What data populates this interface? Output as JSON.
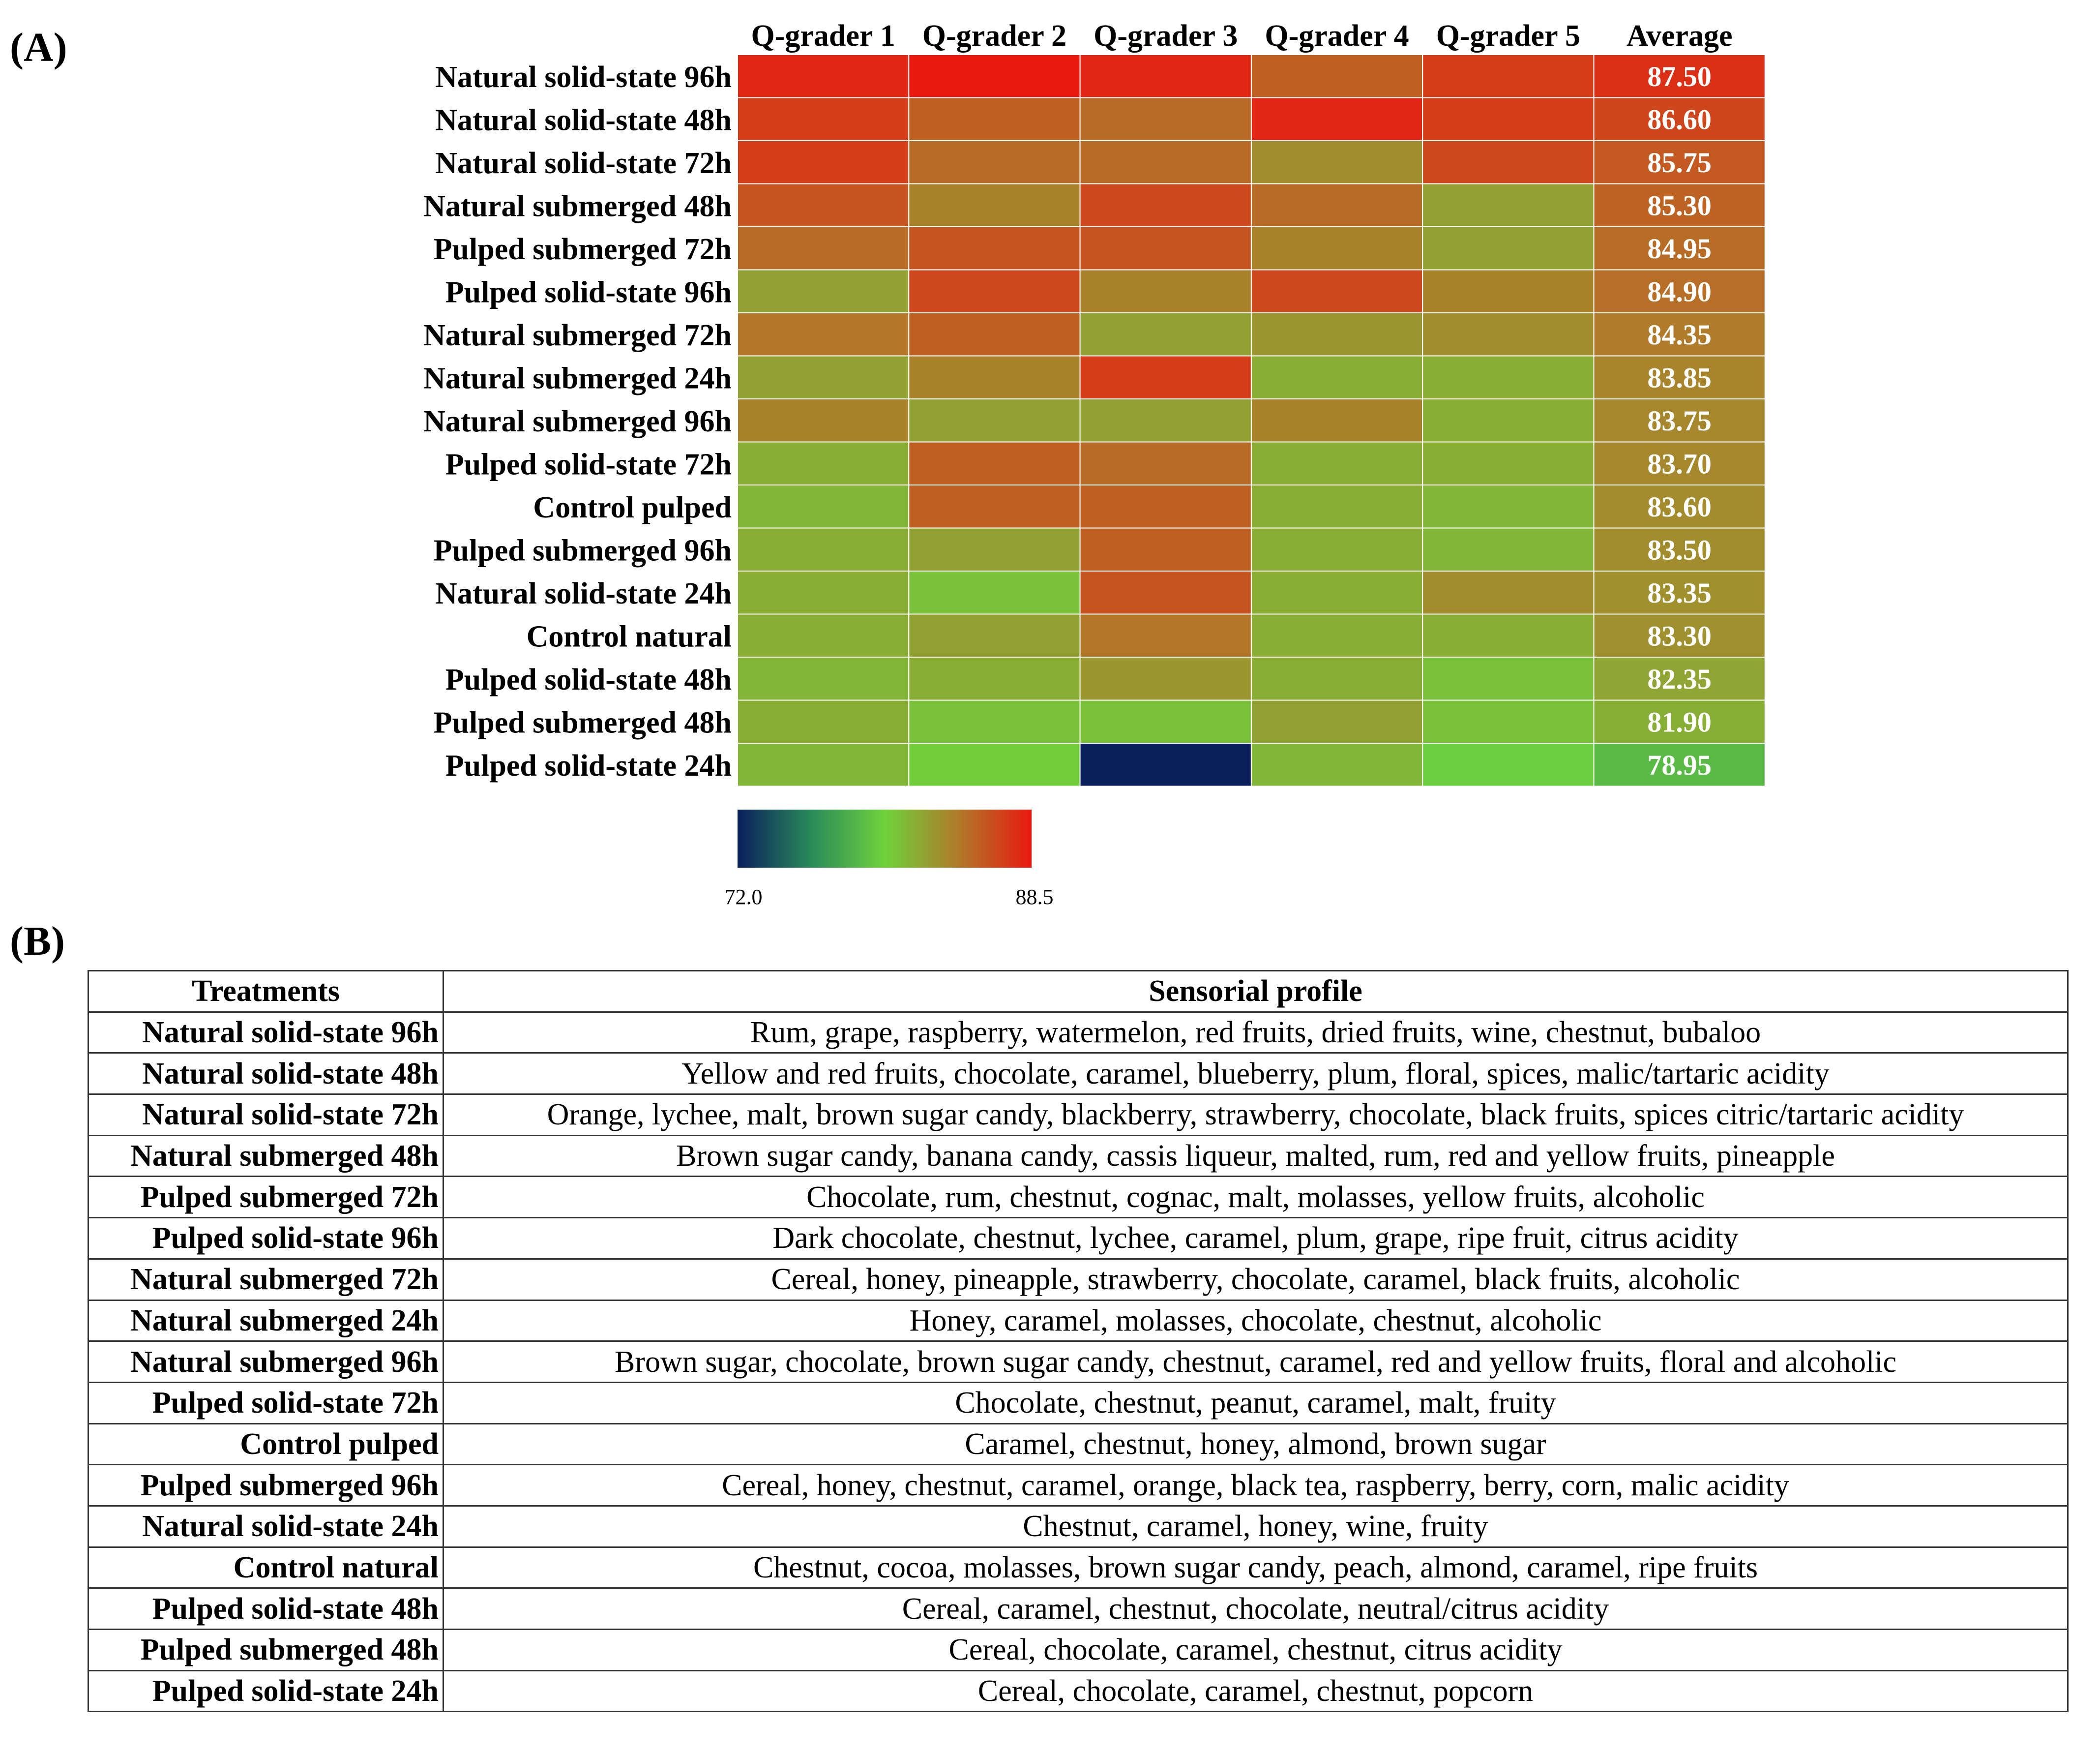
{
  "panel_a_label": "(A)",
  "panel_b_label": "(B)",
  "chart_data": {
    "type": "heatmap",
    "columns": [
      "Q-grader 1",
      "Q-grader 2",
      "Q-grader 3",
      "Q-grader 4",
      "Q-grader 5",
      "Average"
    ],
    "rows": [
      "Natural solid-state 96h",
      "Natural solid-state 48h",
      "Natural solid-state 72h",
      "Natural submerged 48h",
      "Pulped submerged 72h",
      "Pulped solid-state 96h",
      "Natural submerged 72h",
      "Natural submerged 24h",
      "Natural submerged 96h",
      "Pulped solid-state 72h",
      "Control pulped",
      "Pulped submerged 96h",
      "Natural solid-state 24h",
      "Control natural",
      "Pulped solid-state 48h",
      "Pulped submerged 48h",
      "Pulped solid-state 24h"
    ],
    "values": [
      [
        88.0,
        88.5,
        88.0,
        85.5,
        87.0,
        87.5
      ],
      [
        87.0,
        85.5,
        85.0,
        88.0,
        87.0,
        86.6
      ],
      [
        87.0,
        85.0,
        85.0,
        83.5,
        86.5,
        85.75
      ],
      [
        86.0,
        84.0,
        86.5,
        85.0,
        82.5,
        85.3
      ],
      [
        85.0,
        86.0,
        86.0,
        84.0,
        82.5,
        84.95
      ],
      [
        82.5,
        86.5,
        84.0,
        86.5,
        84.0,
        84.9
      ],
      [
        84.5,
        85.5,
        82.5,
        83.0,
        83.5,
        84.35
      ],
      [
        82.5,
        84.0,
        87.0,
        82.0,
        82.0,
        83.85
      ],
      [
        84.0,
        82.5,
        82.5,
        84.0,
        82.0,
        83.75
      ],
      [
        82.0,
        85.5,
        85.0,
        82.0,
        82.0,
        83.7
      ],
      [
        81.5,
        85.5,
        85.5,
        82.0,
        81.5,
        83.6
      ],
      [
        82.0,
        82.5,
        85.5,
        82.0,
        81.5,
        83.5
      ],
      [
        82.0,
        81.0,
        86.0,
        82.0,
        83.5,
        83.35
      ],
      [
        82.0,
        82.5,
        84.5,
        82.0,
        82.0,
        83.3
      ],
      [
        81.5,
        82.0,
        83.0,
        82.0,
        81.0,
        82.35
      ],
      [
        82.0,
        81.0,
        81.0,
        82.5,
        81.0,
        81.9
      ],
      [
        81.5,
        80.5,
        72.0,
        81.5,
        80.0,
        78.95
      ]
    ],
    "average_labels": [
      "87.50",
      "86.60",
      "85.75",
      "85.30",
      "84.95",
      "84.90",
      "84.35",
      "83.85",
      "83.75",
      "83.70",
      "83.60",
      "83.50",
      "83.35",
      "83.30",
      "82.35",
      "81.90",
      "78.95"
    ],
    "color_scale": {
      "min": 72.0,
      "max": 88.5,
      "min_label": "72.0",
      "max_label": "88.5",
      "stops": [
        "#0a1f5c",
        "#2a8a5a",
        "#6ed23c",
        "#b07a2a",
        "#e81a10"
      ]
    }
  },
  "table": {
    "headers": [
      "Treatments",
      "Sensorial profile"
    ],
    "rows": [
      [
        "Natural solid-state 96h",
        "Rum, grape, raspberry, watermelon, red fruits, dried fruits, wine, chestnut, bubaloo"
      ],
      [
        "Natural solid-state 48h",
        "Yellow and red fruits, chocolate, caramel, blueberry, plum, floral, spices, malic/tartaric acidity"
      ],
      [
        "Natural solid-state 72h",
        "Orange, lychee, malt, brown sugar candy, blackberry, strawberry, chocolate, black fruits, spices citric/tartaric acidity"
      ],
      [
        "Natural submerged 48h",
        "Brown sugar candy, banana candy, cassis liqueur, malted, rum, red and yellow fruits, pineapple"
      ],
      [
        "Pulped submerged 72h",
        "Chocolate, rum, chestnut, cognac, malt, molasses, yellow fruits, alcoholic"
      ],
      [
        "Pulped solid-state 96h",
        "Dark chocolate, chestnut, lychee, caramel, plum, grape, ripe fruit, citrus acidity"
      ],
      [
        "Natural submerged 72h",
        "Cereal, honey, pineapple, strawberry, chocolate, caramel, black fruits, alcoholic"
      ],
      [
        "Natural submerged 24h",
        "Honey, caramel, molasses, chocolate, chestnut, alcoholic"
      ],
      [
        "Natural submerged 96h",
        "Brown sugar, chocolate, brown sugar candy, chestnut, caramel, red and yellow fruits, floral and alcoholic"
      ],
      [
        "Pulped solid-state 72h",
        "Chocolate, chestnut, peanut, caramel, malt, fruity"
      ],
      [
        "Control pulped",
        "Caramel, chestnut, honey, almond, brown sugar"
      ],
      [
        "Pulped submerged 96h",
        "Cereal, honey, chestnut, caramel, orange, black tea, raspberry, berry, corn, malic acidity"
      ],
      [
        "Natural solid-state 24h",
        "Chestnut, caramel, honey, wine, fruity"
      ],
      [
        "Control natural",
        "Chestnut, cocoa, molasses,  brown sugar candy, peach, almond, caramel, ripe fruits"
      ],
      [
        "Pulped solid-state 48h",
        "Cereal, caramel, chestnut, chocolate, neutral/citrus acidity"
      ],
      [
        "Pulped submerged 48h",
        "Cereal, chocolate, caramel, chestnut, citrus acidity"
      ],
      [
        "Pulped solid-state 24h",
        "Cereal, chocolate, caramel, chestnut, popcorn"
      ]
    ]
  }
}
